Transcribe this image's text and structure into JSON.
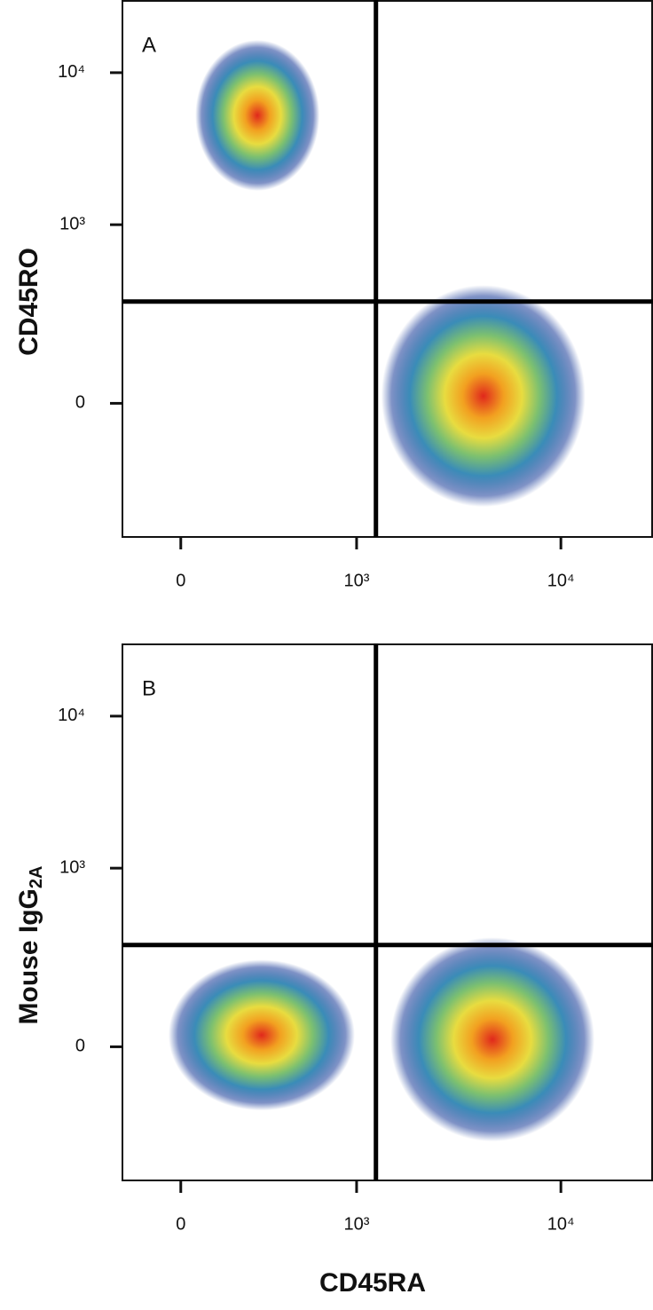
{
  "xlabel": "CD45RA",
  "chart_data": [
    {
      "type": "scatter",
      "panel_label": "A",
      "ylabel": "CD45RO",
      "xscale": "asinh",
      "xscale_width": 286,
      "yscale": "asinh",
      "yscale_width": 135,
      "xlim": [
        -200,
        28000
      ],
      "ylim": [
        -500,
        30000
      ],
      "xticks": [
        0,
        {
          "value": 1000,
          "label": "10³"
        },
        {
          "value": 10000,
          "label": "10⁴"
        }
      ],
      "yticks": [
        0,
        {
          "value": 1000,
          "label": "10³"
        },
        {
          "value": 10000,
          "label": "10⁴"
        }
      ],
      "gates": {
        "x": 1250,
        "y": 300
      },
      "populations": [
        {
          "x": 276,
          "y": 5240
        },
        {
          "x": 4200,
          "y": 15
        }
      ]
    },
    {
      "type": "scatter",
      "panel_label": "B",
      "ylabel": "Mouse IgG",
      "ylabel_subscript": "2A",
      "xscale": "asinh",
      "xscale_width": 286,
      "yscale": "asinh",
      "yscale_width": 135,
      "xlim": [
        -200,
        28000
      ],
      "ylim": [
        -500,
        30000
      ],
      "xticks": [
        0,
        {
          "value": 1000,
          "label": "10³"
        },
        {
          "value": 10000,
          "label": "10⁴"
        }
      ],
      "yticks": [
        0,
        {
          "value": 1000,
          "label": "10³"
        },
        {
          "value": 10000,
          "label": "10⁴"
        }
      ],
      "gates": {
        "x": 1250,
        "y": 300
      },
      "populations": [
        {
          "x": 295,
          "y": 24
        },
        {
          "x": 4650,
          "y": 15
        }
      ]
    }
  ]
}
